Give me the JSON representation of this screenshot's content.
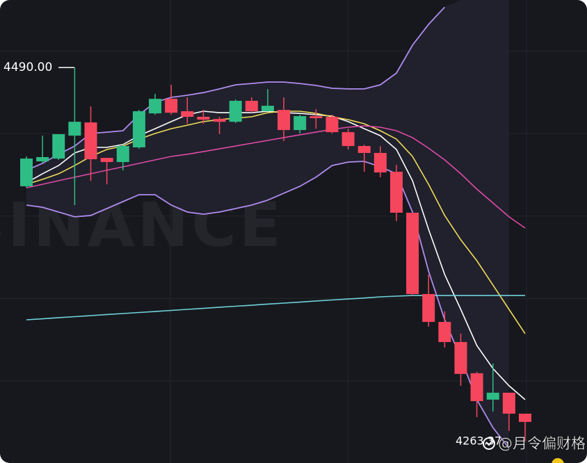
{
  "chart_data": {
    "type": "candlestick",
    "ylim": [
      4250.3,
      4530.9
    ],
    "yticks": [
      4300,
      4350,
      4400,
      4450,
      4500
    ],
    "grid": true,
    "up_color": "#2ebd85",
    "down_color": "#f6465d",
    "open": [
      4418.0,
      4433.1,
      4434.8,
      4448.7,
      4456.7,
      4435.2,
      4432.7,
      4441.6,
      4462.2,
      4471.0,
      4463.5,
      4460.1,
      4458.8,
      4457.1,
      4469.8,
      4463.5,
      4464.3,
      4452.1,
      4460.5,
      4460.1,
      4450.8,
      4442.4,
      4438.2,
      4426.8,
      4402.0,
      4352.7,
      4335.8,
      4323.6,
      4304.7,
      4288.7,
      4292.9,
      4280.2
    ],
    "close": [
      4434.8,
      4435.7,
      4449.6,
      4457.1,
      4434.4,
      4432.7,
      4442.4,
      4463.5,
      4471.0,
      4462.6,
      4460.1,
      4458.4,
      4457.1,
      4469.8,
      4463.5,
      4466.8,
      4452.1,
      4460.5,
      4459.3,
      4450.8,
      4442.4,
      4438.2,
      4426.4,
      4402.0,
      4352.7,
      4335.8,
      4323.6,
      4304.3,
      4287.8,
      4292.9,
      4280.2,
      4275.2
    ],
    "high": [
      4436.1,
      4448.7,
      4449.6,
      4490.0,
      4466.4,
      4435.2,
      4443.2,
      4464.3,
      4474.0,
      4479.5,
      4471.9,
      4464.3,
      4460.1,
      4470.6,
      4471.9,
      4476.9,
      4471.9,
      4461.4,
      4464.7,
      4461.4,
      4452.9,
      4443.2,
      4442.4,
      4431.0,
      4402.0,
      4364.5,
      4342.2,
      4328.7,
      4305.5,
      4310.6,
      4292.9,
      4280.2
    ],
    "low": [
      4417.1,
      4431.9,
      4434.0,
      4406.6,
      4421.3,
      4419.2,
      4427.7,
      4440.7,
      4461.4,
      4461.4,
      4455.9,
      4455.9,
      4449.6,
      4456.3,
      4462.6,
      4463.5,
      4445.4,
      4450.0,
      4452.9,
      4450.0,
      4440.3,
      4426.8,
      4423.5,
      4396.9,
      4351.8,
      4332.9,
      4320.3,
      4297.1,
      4278.1,
      4281.5,
      4269.7,
      4263.37
    ],
    "band_upper": [
      4427.7,
      4431.9,
      4437.4,
      4442.4,
      4450.0,
      4450.8,
      4451.7,
      4461.4,
      4468.9,
      4471.9,
      4473.2,
      4474.8,
      4477.0,
      4479.5,
      4480.3,
      4481.2,
      4481.2,
      4480.3,
      4479.1,
      4477.4,
      4477.0,
      4477.0,
      4479.5,
      4486.6,
      4503.5,
      4516.1,
      4526.6,
      null,
      null,
      null,
      null,
      null
    ],
    "band_lower": [
      4406.6,
      4405.3,
      4402.4,
      4399.5,
      4400.3,
      4404.5,
      4408.7,
      4412.9,
      4412.9,
      4406.6,
      4402.4,
      4401.1,
      4402.4,
      4404.5,
      4406.6,
      4409.6,
      4413.8,
      4418.0,
      4423.5,
      4430.6,
      4432.7,
      4433.1,
      4429.8,
      4425.6,
      4402.4,
      4366.6,
      4337.1,
      4313.9,
      4288.7,
      4271.8,
      4259.2,
      null
    ],
    "band_color": "#b08cf0",
    "lines": [
      {
        "color": "#ffffff",
        "values": [
          4420.1,
          4425.6,
          4430.6,
          4438.2,
          4441.6,
          4441.6,
          4443.3,
          4448.7,
          4452.9,
          4457.2,
          4461.4,
          4463.5,
          4462.6,
          4462.6,
          4462.6,
          4463.5,
          4462.6,
          4462.2,
          4461.4,
          4460.5,
          4457.2,
          4452.9,
          4448.7,
          4440.3,
          4421.4,
          4391.9,
          4364.5,
          4343.4,
          4321.5,
          4307.6,
          4297.1,
          4288.7
        ]
      },
      {
        "color": "#f0dc5a",
        "values": [
          4419.2,
          4422.2,
          4425.6,
          4430.6,
          4436.1,
          4440.3,
          4442.4,
          4446.6,
          4450.0,
          4452.9,
          4455.0,
          4457.2,
          4458.4,
          4459.3,
          4460.1,
          4462.6,
          4463.5,
          4463.5,
          4462.2,
          4460.1,
          4458.4,
          4455.9,
          4451.7,
          4446.6,
          4436.1,
          4419.2,
          4400.3,
          4385.6,
          4372.9,
          4358.2,
          4343.4,
          4328.7
        ]
      },
      {
        "color": "#e04aa8",
        "values": [
          4417.1,
          4419.2,
          4421.4,
          4423.5,
          4425.6,
          4427.7,
          4429.8,
          4431.9,
          4434.0,
          4436.1,
          4437.4,
          4439.0,
          4440.7,
          4442.4,
          4444.1,
          4445.8,
          4447.5,
          4449.2,
          4450.8,
          4452.5,
          4453.8,
          4454.6,
          4453.8,
          4451.7,
          4447.5,
          4441.1,
          4434.0,
          4425.6,
          4416.3,
          4407.9,
          4399.5,
          4392.7
        ]
      },
      {
        "color": "#6fd3dc",
        "values": [
          4337.1,
          4337.7,
          4338.4,
          4339.0,
          4339.6,
          4340.3,
          4340.9,
          4341.5,
          4342.1,
          4342.8,
          4343.4,
          4344.0,
          4344.7,
          4345.3,
          4345.9,
          4346.6,
          4347.2,
          4347.8,
          4348.5,
          4349.1,
          4349.7,
          4350.3,
          4351.0,
          4351.4,
          4351.8,
          4351.8,
          4351.8,
          4351.8,
          4351.8,
          4351.8,
          4351.8,
          4351.8
        ]
      }
    ],
    "high_label": {
      "value": 4490.0,
      "label": "4490.00"
    },
    "low_label": {
      "value": 4263.37,
      "label": "4263.37"
    },
    "brand_watermark": "BINANCE",
    "author_watermark": "@月令偏财格"
  }
}
